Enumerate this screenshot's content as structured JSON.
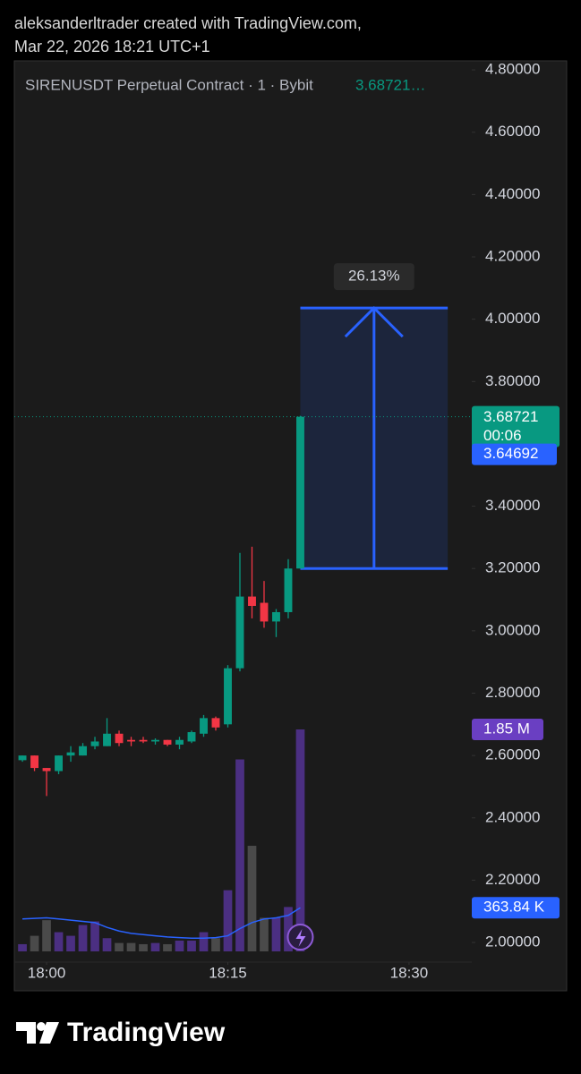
{
  "header": {
    "line1": "aleksanderltrader created with TradingView.com,",
    "line2": "Mar 22, 2026 18:21 UTC+1"
  },
  "chart_data": {
    "type": "candlestick",
    "symbol": "SIRENUSDT Perpetual Contract · 1 · Bybit",
    "symbol_price": "3.68721…",
    "x": [
      -2,
      -1,
      0,
      1,
      2,
      3,
      4,
      5,
      6,
      7,
      8,
      9,
      10,
      11,
      12,
      13,
      14,
      15,
      16,
      17,
      18,
      19,
      20,
      21
    ],
    "open": [
      2.585,
      2.6,
      2.56,
      2.55,
      2.6,
      2.6,
      2.63,
      2.63,
      2.67,
      2.65,
      2.65,
      2.645,
      2.65,
      2.635,
      2.645,
      2.67,
      2.72,
      2.7,
      2.88,
      3.11,
      3.09,
      3.03,
      3.06,
      3.2
    ],
    "high": [
      2.6,
      2.6,
      2.56,
      2.6,
      2.63,
      2.64,
      2.66,
      2.72,
      2.68,
      2.66,
      2.66,
      2.655,
      2.65,
      2.66,
      2.68,
      2.73,
      2.725,
      2.89,
      3.25,
      3.27,
      3.16,
      3.07,
      3.23,
      3.69
    ],
    "low": [
      2.58,
      2.55,
      2.47,
      2.54,
      2.58,
      2.6,
      2.62,
      2.63,
      2.63,
      2.63,
      2.64,
      2.635,
      2.63,
      2.62,
      2.64,
      2.66,
      2.68,
      2.69,
      2.87,
      3.04,
      3.01,
      2.98,
      3.04,
      3.2
    ],
    "close": [
      2.6,
      2.56,
      2.55,
      2.6,
      2.61,
      2.63,
      2.645,
      2.67,
      2.64,
      2.645,
      2.645,
      2.65,
      2.635,
      2.65,
      2.675,
      2.72,
      2.69,
      2.88,
      3.11,
      3.08,
      3.03,
      3.06,
      3.2,
      3.687
    ],
    "up_color": "#089981",
    "down_color": "#f23645",
    "volume": [
      60000,
      130000,
      260000,
      160000,
      130000,
      220000,
      250000,
      110000,
      70000,
      70000,
      60000,
      70000,
      60000,
      90000,
      90000,
      160000,
      110000,
      510000,
      1600000,
      880000,
      280000,
      280000,
      370000,
      1850000
    ],
    "volume_up_color": "#4b2f82",
    "volume_down_color": "#4a4a4a",
    "volume_ma": [
      270000,
      275000,
      280000,
      270000,
      260000,
      250000,
      240000,
      200000,
      170000,
      150000,
      140000,
      130000,
      120000,
      115000,
      110000,
      110000,
      115000,
      130000,
      190000,
      240000,
      270000,
      280000,
      300000,
      363840
    ],
    "volume_ma_color": "#2962ff",
    "volume_label": {
      "value": 1850000,
      "label": "1.85 M"
    },
    "volume_ma_label": {
      "value": 363840,
      "label": "363.84 K"
    },
    "last_price": 3.68721,
    "countdown": "00:06",
    "mark_price": 3.64692,
    "measure": {
      "from": 3.2,
      "to": 4.036,
      "x": [
        21,
        33.2
      ],
      "change": 26.13,
      "change_label": "26.13%"
    },
    "xlim": [
      -2.67,
      35.19
    ],
    "ylim": [
      1.937,
      4.829
    ],
    "xticks": [
      {
        "value": 0,
        "label": "18:00"
      },
      {
        "value": 15,
        "label": "18:15"
      },
      {
        "value": 30,
        "label": "18:30"
      }
    ],
    "yticks": [
      {
        "value": 2.0,
        "label": "2.00000"
      },
      {
        "value": 2.2,
        "label": "2.20000"
      },
      {
        "value": 2.4,
        "label": "2.40000"
      },
      {
        "value": 2.6,
        "label": "2.60000"
      },
      {
        "value": 2.8,
        "label": "2.80000"
      },
      {
        "value": 3.0,
        "label": "3.00000"
      },
      {
        "value": 3.2,
        "label": "3.20000"
      },
      {
        "value": 3.4,
        "label": "3.40000"
      },
      {
        "value": 3.6,
        "label": "3.60000"
      },
      {
        "value": 3.8,
        "label": "3.80000"
      },
      {
        "value": 4.0,
        "label": "4.00000"
      },
      {
        "value": 4.2,
        "label": "4.20000"
      },
      {
        "value": 4.4,
        "label": "4.40000"
      },
      {
        "value": 4.6,
        "label": "4.60000"
      },
      {
        "value": 4.8,
        "label": "4.80000"
      }
    ]
  },
  "footer": {
    "brand": "TradingView"
  }
}
